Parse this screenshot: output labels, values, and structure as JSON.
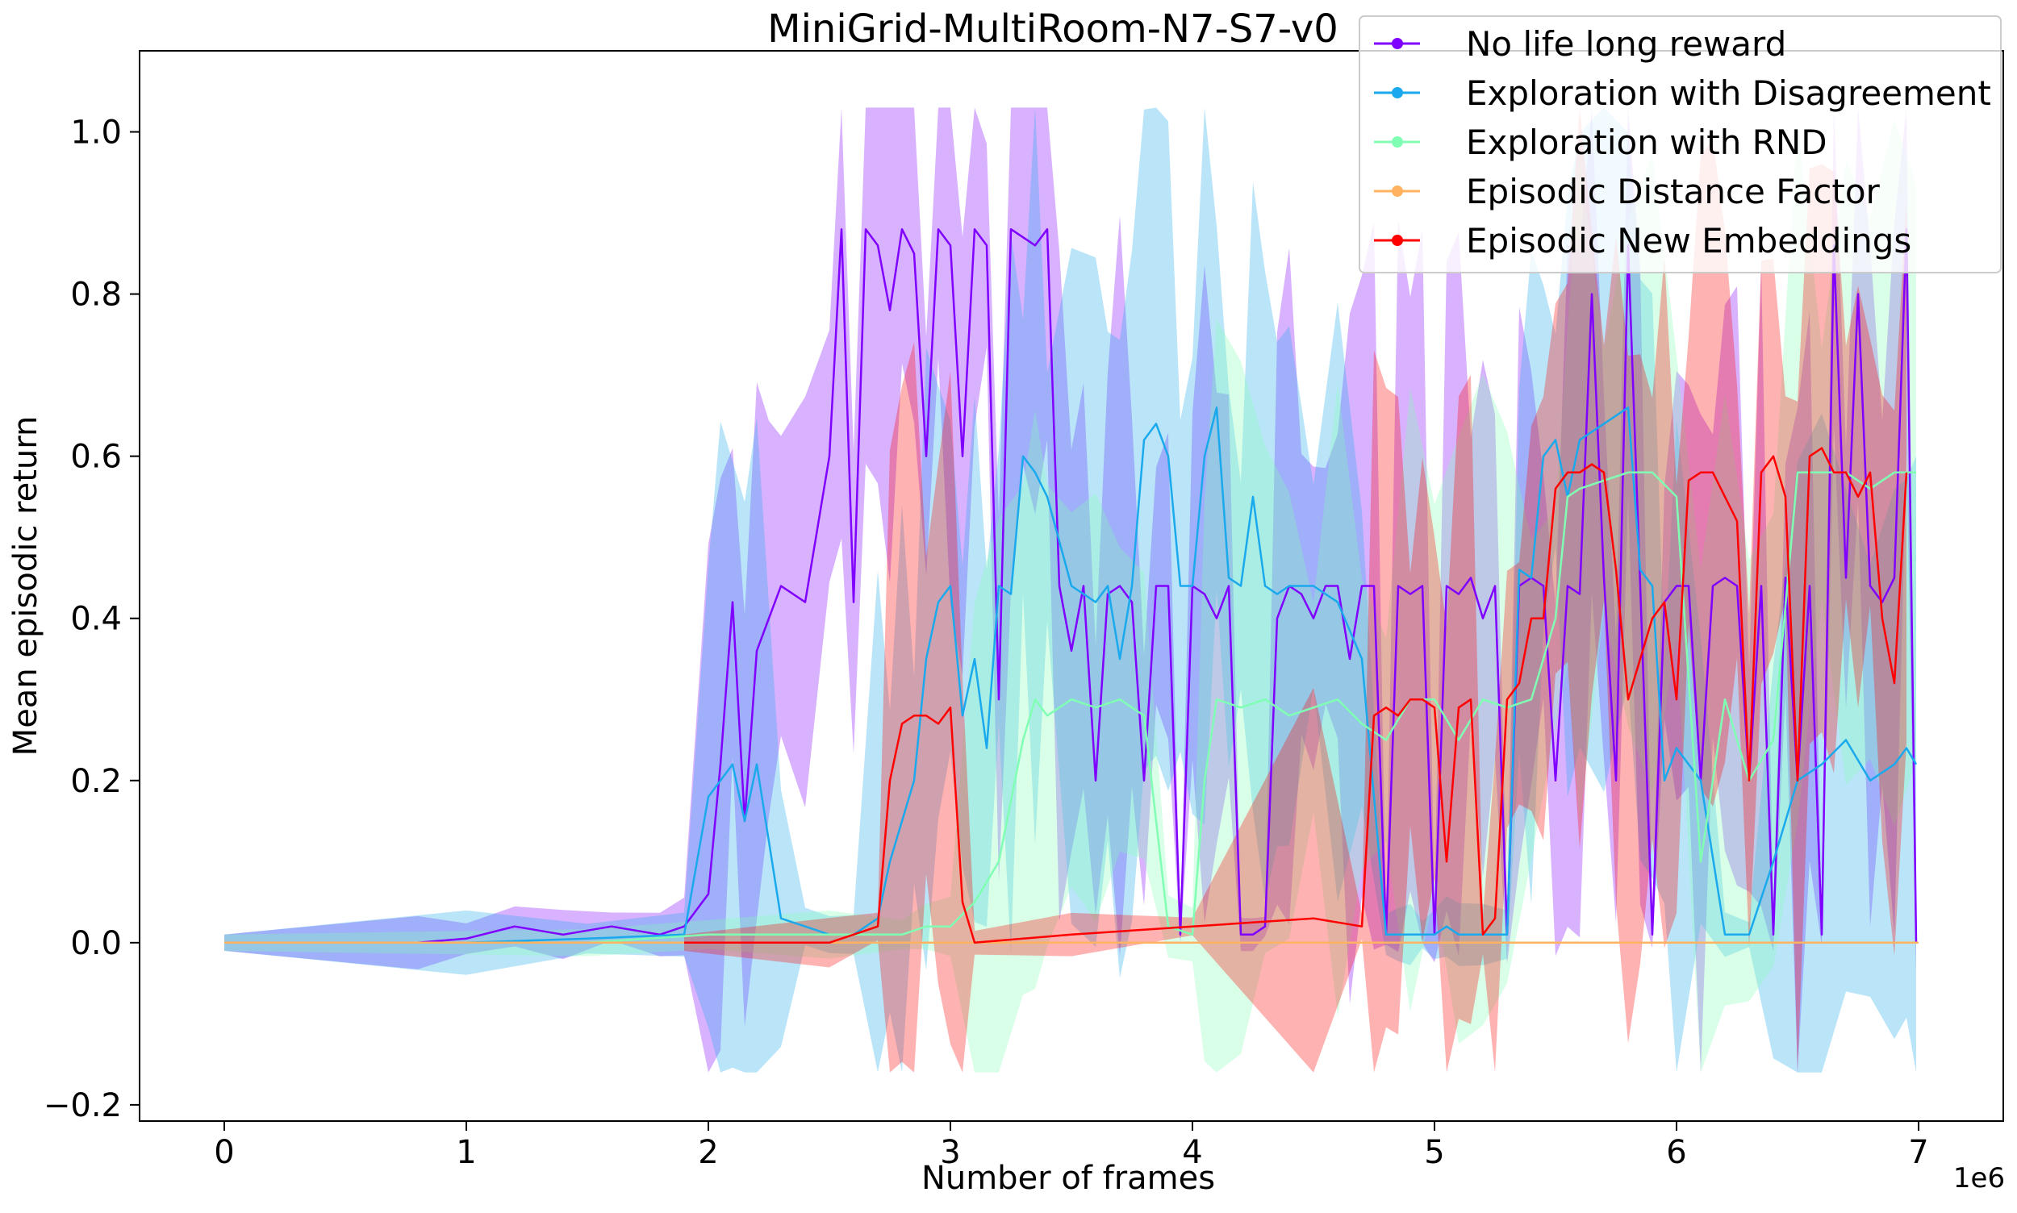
{
  "chart_data": {
    "type": "line",
    "title": "MiniGrid-MultiRoom-N7-S7-v0",
    "xlabel": "Number of frames",
    "ylabel": "Mean episodic return",
    "x_offset_label": "1e6",
    "xlim": [
      -0.35,
      7.35
    ],
    "ylim": [
      -0.22,
      1.1
    ],
    "xticks": [
      0,
      1,
      2,
      3,
      4,
      5,
      6,
      7
    ],
    "xtick_labels": [
      "0",
      "1",
      "2",
      "3",
      "4",
      "5",
      "6",
      "7"
    ],
    "yticks": [
      -0.2,
      0.0,
      0.2,
      0.4,
      0.6,
      0.8,
      1.0
    ],
    "ytick_labels": [
      "−0.2",
      "0.0",
      "0.2",
      "0.4",
      "0.6",
      "0.8",
      "1.0"
    ],
    "grid": false,
    "legend_position": "top-right",
    "x_unit_scale": "1e6",
    "series": [
      {
        "name": "No life long reward",
        "color": "#8000ff",
        "x": [
          0.0,
          0.8,
          1.0,
          1.2,
          1.4,
          1.6,
          1.8,
          1.9,
          2.0,
          2.05,
          2.1,
          2.15,
          2.2,
          2.25,
          2.3,
          2.4,
          2.5,
          2.55,
          2.6,
          2.65,
          2.7,
          2.75,
          2.8,
          2.85,
          2.9,
          2.95,
          3.0,
          3.05,
          3.1,
          3.15,
          3.2,
          3.25,
          3.3,
          3.35,
          3.4,
          3.45,
          3.5,
          3.55,
          3.6,
          3.65,
          3.7,
          3.75,
          3.8,
          3.85,
          3.9,
          3.95,
          4.0,
          4.05,
          4.1,
          4.15,
          4.2,
          4.25,
          4.3,
          4.35,
          4.4,
          4.45,
          4.5,
          4.55,
          4.6,
          4.65,
          4.7,
          4.75,
          4.8,
          4.85,
          4.9,
          4.95,
          5.0,
          5.05,
          5.1,
          5.15,
          5.2,
          5.25,
          5.3,
          5.35,
          5.4,
          5.45,
          5.5,
          5.55,
          5.6,
          5.65,
          5.7,
          5.75,
          5.8,
          5.85,
          5.9,
          5.95,
          6.0,
          6.05,
          6.1,
          6.15,
          6.2,
          6.25,
          6.3,
          6.35,
          6.4,
          6.45,
          6.5,
          6.55,
          6.6,
          6.65,
          6.7,
          6.75,
          6.8,
          6.85,
          6.9,
          6.95,
          6.99
        ],
        "y": [
          0.0,
          0.0,
          0.005,
          0.02,
          0.01,
          0.02,
          0.01,
          0.02,
          0.06,
          0.22,
          0.42,
          0.15,
          0.36,
          0.4,
          0.44,
          0.42,
          0.6,
          0.88,
          0.42,
          0.88,
          0.86,
          0.78,
          0.88,
          0.85,
          0.6,
          0.88,
          0.86,
          0.6,
          0.88,
          0.86,
          0.3,
          0.88,
          0.87,
          0.86,
          0.88,
          0.44,
          0.36,
          0.44,
          0.2,
          0.43,
          0.44,
          0.42,
          0.2,
          0.44,
          0.44,
          0.01,
          0.44,
          0.43,
          0.4,
          0.44,
          0.01,
          0.01,
          0.02,
          0.4,
          0.44,
          0.43,
          0.4,
          0.44,
          0.44,
          0.35,
          0.44,
          0.44,
          0.01,
          0.44,
          0.43,
          0.44,
          0.01,
          0.44,
          0.43,
          0.45,
          0.4,
          0.44,
          0.01,
          0.44,
          0.45,
          0.44,
          0.2,
          0.44,
          0.43,
          0.8,
          0.45,
          0.2,
          0.86,
          0.44,
          0.01,
          0.42,
          0.44,
          0.44,
          0.2,
          0.44,
          0.45,
          0.44,
          0.2,
          0.44,
          0.01,
          0.45,
          0.2,
          0.44,
          0.01,
          0.86,
          0.45,
          0.8,
          0.44,
          0.42,
          0.45,
          0.88,
          0.0
        ]
      },
      {
        "name": "Exploration with Disagreement",
        "color": "#1aa9ec",
        "x": [
          0.0,
          1.0,
          1.5,
          1.9,
          2.0,
          2.05,
          2.1,
          2.15,
          2.2,
          2.3,
          2.4,
          2.5,
          2.6,
          2.7,
          2.75,
          2.8,
          2.85,
          2.9,
          2.95,
          3.0,
          3.05,
          3.1,
          3.15,
          3.2,
          3.25,
          3.3,
          3.35,
          3.4,
          3.5,
          3.6,
          3.65,
          3.7,
          3.75,
          3.8,
          3.85,
          3.9,
          3.95,
          4.0,
          4.05,
          4.1,
          4.15,
          4.2,
          4.25,
          4.3,
          4.35,
          4.4,
          4.5,
          4.6,
          4.7,
          4.8,
          4.85,
          4.9,
          4.95,
          5.0,
          5.05,
          5.1,
          5.2,
          5.3,
          5.35,
          5.4,
          5.45,
          5.5,
          5.55,
          5.6,
          5.7,
          5.8,
          5.85,
          5.9,
          5.95,
          6.0,
          6.1,
          6.2,
          6.3,
          6.4,
          6.5,
          6.6,
          6.7,
          6.8,
          6.9,
          6.95,
          6.99
        ],
        "y": [
          0.0,
          0.0,
          0.005,
          0.01,
          0.18,
          0.2,
          0.22,
          0.15,
          0.22,
          0.03,
          0.02,
          0.01,
          0.01,
          0.03,
          0.1,
          0.15,
          0.2,
          0.35,
          0.42,
          0.44,
          0.28,
          0.35,
          0.24,
          0.44,
          0.43,
          0.6,
          0.58,
          0.55,
          0.44,
          0.42,
          0.44,
          0.35,
          0.44,
          0.62,
          0.64,
          0.6,
          0.44,
          0.44,
          0.6,
          0.66,
          0.45,
          0.44,
          0.55,
          0.44,
          0.43,
          0.44,
          0.44,
          0.42,
          0.35,
          0.01,
          0.01,
          0.01,
          0.01,
          0.01,
          0.02,
          0.01,
          0.01,
          0.01,
          0.46,
          0.45,
          0.6,
          0.62,
          0.55,
          0.62,
          0.64,
          0.66,
          0.46,
          0.44,
          0.2,
          0.24,
          0.2,
          0.01,
          0.01,
          0.1,
          0.2,
          0.22,
          0.25,
          0.2,
          0.22,
          0.24,
          0.22
        ]
      },
      {
        "name": "Exploration with RND",
        "color": "#80ffb4",
        "x": [
          0.0,
          1.5,
          2.0,
          2.5,
          2.8,
          2.9,
          3.0,
          3.1,
          3.2,
          3.3,
          3.35,
          3.4,
          3.5,
          3.6,
          3.7,
          3.8,
          3.9,
          4.0,
          4.05,
          4.1,
          4.2,
          4.3,
          4.4,
          4.5,
          4.6,
          4.7,
          4.8,
          4.9,
          5.0,
          5.1,
          5.2,
          5.3,
          5.4,
          5.5,
          5.55,
          5.6,
          5.7,
          5.8,
          5.9,
          6.0,
          6.1,
          6.2,
          6.3,
          6.4,
          6.5,
          6.6,
          6.7,
          6.8,
          6.9,
          6.99
        ],
        "y": [
          0.0,
          0.0,
          0.01,
          0.01,
          0.01,
          0.02,
          0.02,
          0.05,
          0.1,
          0.25,
          0.3,
          0.28,
          0.3,
          0.29,
          0.3,
          0.28,
          0.02,
          0.01,
          0.2,
          0.3,
          0.29,
          0.3,
          0.28,
          0.29,
          0.3,
          0.27,
          0.25,
          0.3,
          0.3,
          0.25,
          0.3,
          0.29,
          0.3,
          0.4,
          0.55,
          0.56,
          0.57,
          0.58,
          0.58,
          0.55,
          0.1,
          0.3,
          0.2,
          0.25,
          0.58,
          0.58,
          0.58,
          0.56,
          0.58,
          0.58
        ]
      },
      {
        "name": "Episodic Distance Factor",
        "color": "#ffb360",
        "x": [
          0.0,
          7.0
        ],
        "y": [
          0.0,
          0.0
        ]
      },
      {
        "name": "Episodic New Embeddings",
        "color": "#ff0000",
        "x": [
          1.9,
          2.5,
          2.7,
          2.75,
          2.8,
          2.85,
          2.9,
          2.95,
          3.0,
          3.05,
          3.1,
          3.5,
          4.0,
          4.5,
          4.7,
          4.75,
          4.8,
          4.85,
          4.9,
          4.95,
          5.0,
          5.05,
          5.1,
          5.15,
          5.2,
          5.25,
          5.3,
          5.35,
          5.4,
          5.45,
          5.5,
          5.55,
          5.6,
          5.65,
          5.7,
          5.75,
          5.8,
          5.85,
          5.9,
          5.95,
          6.0,
          6.05,
          6.1,
          6.15,
          6.2,
          6.25,
          6.3,
          6.35,
          6.4,
          6.45,
          6.5,
          6.55,
          6.6,
          6.65,
          6.7,
          6.75,
          6.8,
          6.85,
          6.9,
          6.95
        ],
        "y": [
          0.0,
          0.0,
          0.02,
          0.2,
          0.27,
          0.28,
          0.28,
          0.27,
          0.29,
          0.05,
          0.0,
          0.01,
          0.02,
          0.03,
          0.02,
          0.28,
          0.29,
          0.28,
          0.3,
          0.3,
          0.29,
          0.1,
          0.29,
          0.3,
          0.01,
          0.03,
          0.3,
          0.32,
          0.4,
          0.4,
          0.56,
          0.58,
          0.58,
          0.59,
          0.58,
          0.46,
          0.3,
          0.35,
          0.4,
          0.42,
          0.3,
          0.57,
          0.58,
          0.58,
          0.55,
          0.52,
          0.2,
          0.58,
          0.6,
          0.55,
          0.2,
          0.6,
          0.61,
          0.58,
          0.58,
          0.55,
          0.58,
          0.4,
          0.32,
          0.58
        ]
      }
    ]
  }
}
